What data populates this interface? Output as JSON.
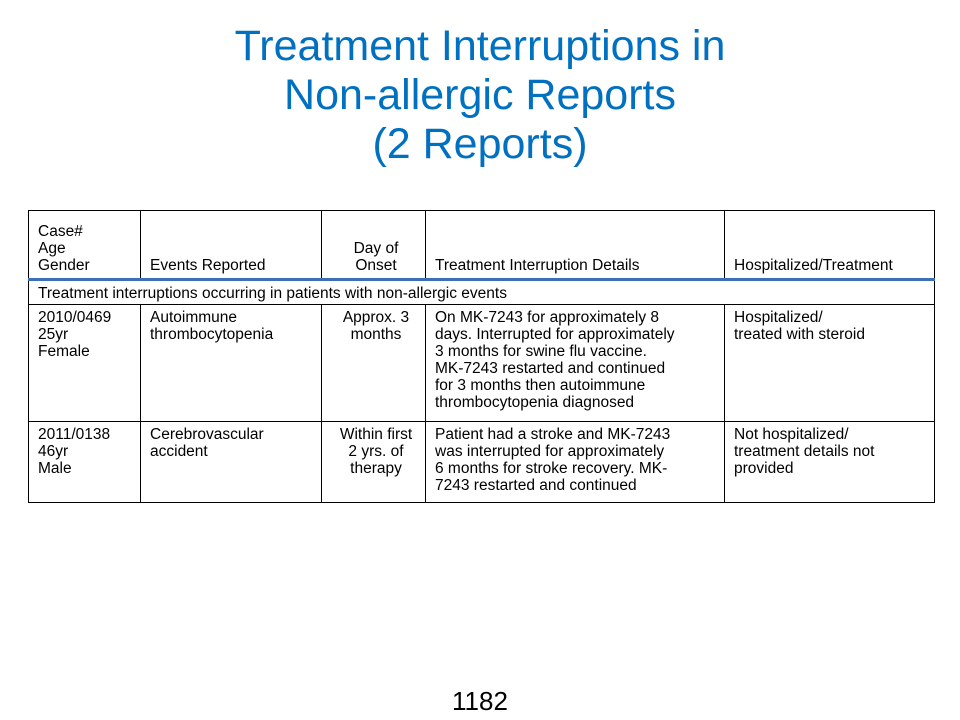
{
  "title": {
    "line1": "Treatment Interruptions in",
    "line2": "Non-allergic Reports",
    "line3": "(2 Reports)"
  },
  "table": {
    "headers": {
      "case": "Case#\nAge\nGender",
      "events": "Events Reported",
      "onset": "Day of\nOnset",
      "details": "Treatment Interruption Details",
      "hospitalized": "Hospitalized/Treatment"
    },
    "section_label": "Treatment interruptions occurring in patients with non-allergic events",
    "rows": [
      {
        "case": "2010/0469\n25yr\nFemale",
        "events": "Autoimmune\nthrombocytopenia",
        "onset": "Approx. 3\nmonths",
        "details": "On MK-7243 for approximately 8\ndays. Interrupted for approximately\n3 months for swine flu vaccine.\nMK-7243 restarted and continued\nfor 3 months then autoimmune\nthrombocytopenia diagnosed",
        "hospitalized": "Hospitalized/\ntreated with steroid"
      },
      {
        "case": "2011/0138\n46yr\nMale",
        "events": "Cerebrovascular\naccident",
        "onset": "Within first\n2 yrs. of\ntherapy",
        "details": "Patient had a stroke and MK-7243\nwas interrupted for approximately\n6 months for stroke recovery. MK-\n7243 restarted and continued",
        "hospitalized": "Not hospitalized/\ntreatment  details not\nprovided"
      }
    ]
  },
  "page_number": "1182",
  "colors": {
    "title": "#0070c0",
    "header_rule": "#3d6fb4"
  }
}
